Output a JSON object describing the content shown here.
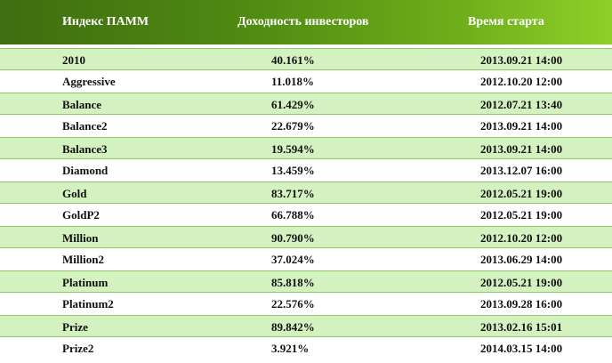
{
  "header": {
    "col_name": "Индекс ПАММ",
    "col_yield": "Доходность инвесторов",
    "col_start": "Время старта"
  },
  "rows": [
    {
      "name": "2010",
      "yield": "40.161%",
      "start": "2013.09.21 14:00"
    },
    {
      "name": "Aggressive",
      "yield": "11.018%",
      "start": "2012.10.20 12:00"
    },
    {
      "name": "Balance",
      "yield": "61.429%",
      "start": "2012.07.21 13:40"
    },
    {
      "name": "Balance2",
      "yield": "22.679%",
      "start": "2013.09.21 14:00"
    },
    {
      "name": "Balance3",
      "yield": "19.594%",
      "start": "2013.09.21 14:00"
    },
    {
      "name": "Diamond",
      "yield": "13.459%",
      "start": "2013.12.07 16:00"
    },
    {
      "name": "Gold",
      "yield": "83.717%",
      "start": "2012.05.21 19:00"
    },
    {
      "name": "GoldP2",
      "yield": "66.788%",
      "start": "2012.05.21 19:00"
    },
    {
      "name": "Million",
      "yield": "90.790%",
      "start": "2012.10.20 12:00"
    },
    {
      "name": "Million2",
      "yield": "37.024%",
      "start": "2013.06.29 14:00"
    },
    {
      "name": "Platinum",
      "yield": "85.818%",
      "start": "2012.05.21 19:00"
    },
    {
      "name": "Platinum2",
      "yield": "22.576%",
      "start": "2013.09.28 16:00"
    },
    {
      "name": "Prize",
      "yield": "89.842%",
      "start": "2013.02.16 15:01"
    },
    {
      "name": "Prize2",
      "yield": "3.921%",
      "start": "2014.03.15 14:00"
    }
  ],
  "colors": {
    "header_dark": "#3f6d10",
    "header_light": "#8fd02a",
    "row_highlight": "#d4f1c0",
    "row_border": "#8fc86a"
  }
}
